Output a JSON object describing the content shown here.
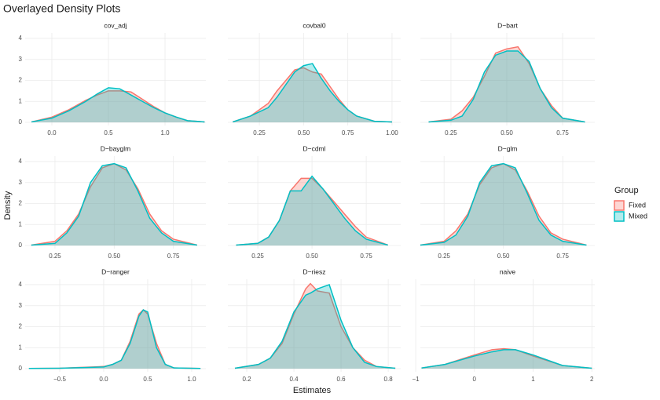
{
  "title": "Overlayed Density Plots",
  "x_label": "Estimates",
  "y_label": "Density",
  "legend_title": "Group",
  "chart_data": [
    {
      "type": "area",
      "title": "cov_adj",
      "x": [
        -0.18,
        0,
        0.15,
        0.3,
        0.4,
        0.5,
        0.6,
        0.7,
        0.8,
        0.9,
        1.0,
        1.1,
        1.2,
        1.35
      ],
      "series": [
        {
          "name": "Fixed",
          "color": "#F8766D",
          "values": [
            0.02,
            0.25,
            0.6,
            1.05,
            1.3,
            1.5,
            1.5,
            1.45,
            1.1,
            0.75,
            0.45,
            0.25,
            0.08,
            0.02
          ]
        },
        {
          "name": "Mixed",
          "color": "#00BFC4",
          "values": [
            0.02,
            0.2,
            0.55,
            1.0,
            1.35,
            1.65,
            1.6,
            1.3,
            1.0,
            0.7,
            0.45,
            0.25,
            0.08,
            0.02
          ]
        }
      ],
      "xlim": [
        -0.236,
        1.361
      ],
      "ylim": [
        -0.15,
        4.26
      ],
      "xticks": [
        {
          "value": 0,
          "label": "0.0"
        },
        0.5,
        {
          "value": 1,
          "label": "1.0"
        }
      ],
      "yticks": [
        0,
        1,
        2,
        3,
        4
      ],
      "grid": true
    },
    {
      "type": "area",
      "title": "covbal0",
      "x": [
        0.1,
        0.2,
        0.3,
        0.35,
        0.4,
        0.45,
        0.5,
        0.55,
        0.6,
        0.65,
        0.7,
        0.75,
        0.8,
        0.9,
        1.0
      ],
      "series": [
        {
          "name": "Fixed",
          "color": "#F8766D",
          "values": [
            0.02,
            0.3,
            0.9,
            1.5,
            2.0,
            2.5,
            2.6,
            2.4,
            2.3,
            1.7,
            1.1,
            0.6,
            0.3,
            0.05,
            0.02
          ]
        },
        {
          "name": "Mixed",
          "color": "#00BFC4",
          "values": [
            0.02,
            0.3,
            0.7,
            1.2,
            1.8,
            2.4,
            2.7,
            2.8,
            2.1,
            1.5,
            1.0,
            0.6,
            0.3,
            0.05,
            0.02
          ]
        }
      ],
      "xlim": [
        0.072,
        1.049
      ],
      "ylim": [
        -0.15,
        4.26
      ],
      "xticks": [
        0.25,
        {
          "value": 0.5,
          "label": "0.50"
        },
        0.75,
        {
          "value": 1,
          "label": "1.00"
        }
      ],
      "yticks": [
        0,
        1,
        2,
        3,
        4
      ],
      "grid": true
    },
    {
      "type": "area",
      "title": "D−bart",
      "x": [
        0.15,
        0.25,
        0.3,
        0.35,
        0.4,
        0.45,
        0.5,
        0.55,
        0.6,
        0.65,
        0.7,
        0.75,
        0.85
      ],
      "series": [
        {
          "name": "Fixed",
          "color": "#F8766D",
          "values": [
            0.02,
            0.15,
            0.55,
            1.2,
            2.2,
            3.3,
            3.5,
            3.6,
            2.8,
            1.6,
            0.8,
            0.2,
            0.02
          ]
        },
        {
          "name": "Mixed",
          "color": "#00BFC4",
          "values": [
            0.02,
            0.1,
            0.3,
            1.1,
            2.4,
            3.2,
            3.4,
            3.4,
            2.9,
            1.6,
            0.7,
            0.2,
            0.02
          ]
        }
      ],
      "xlim": [
        0.113,
        0.894
      ],
      "ylim": [
        -0.15,
        4.26
      ],
      "xticks": [
        0.25,
        {
          "value": 0.5,
          "label": "0.50"
        },
        0.75
      ],
      "yticks": [
        0,
        1,
        2,
        3,
        4
      ],
      "grid": true
    },
    {
      "type": "area",
      "title": "D−bayglm",
      "x": [
        0.15,
        0.25,
        0.3,
        0.35,
        0.4,
        0.45,
        0.5,
        0.55,
        0.6,
        0.65,
        0.7,
        0.75,
        0.85
      ],
      "series": [
        {
          "name": "Fixed",
          "color": "#F8766D",
          "values": [
            0.02,
            0.2,
            0.7,
            1.5,
            2.8,
            3.7,
            3.9,
            3.6,
            2.7,
            1.5,
            0.7,
            0.3,
            0.02
          ]
        },
        {
          "name": "Mixed",
          "color": "#00BFC4",
          "values": [
            0.02,
            0.1,
            0.6,
            1.4,
            3.0,
            3.8,
            3.9,
            3.7,
            2.6,
            1.3,
            0.6,
            0.2,
            0.02
          ]
        }
      ],
      "xlim": [
        0.124,
        0.887
      ],
      "ylim": [
        -0.15,
        4.26
      ],
      "xticks": [
        0.25,
        {
          "value": 0.5,
          "label": "0.50"
        },
        0.75
      ],
      "yticks": [
        0,
        1,
        2,
        3,
        4
      ],
      "grid": true
    },
    {
      "type": "area",
      "title": "D−cdml",
      "x": [
        0.15,
        0.25,
        0.3,
        0.35,
        0.4,
        0.45,
        0.5,
        0.55,
        0.6,
        0.65,
        0.7,
        0.75,
        0.85
      ],
      "series": [
        {
          "name": "Fixed",
          "color": "#F8766D",
          "values": [
            0.02,
            0.1,
            0.4,
            1.2,
            2.6,
            3.2,
            3.2,
            2.7,
            2.1,
            1.5,
            0.9,
            0.4,
            0.02
          ]
        },
        {
          "name": "Mixed",
          "color": "#00BFC4",
          "values": [
            0.02,
            0.1,
            0.4,
            1.2,
            2.6,
            2.6,
            3.3,
            2.7,
            2.0,
            1.3,
            0.7,
            0.3,
            0.02
          ]
        }
      ],
      "xlim": [
        0.112,
        0.909
      ],
      "ylim": [
        -0.15,
        4.26
      ],
      "xticks": [
        0.25,
        {
          "value": 0.5,
          "label": "0.50"
        },
        0.75
      ],
      "yticks": [
        0,
        1,
        2,
        3,
        4
      ],
      "grid": true
    },
    {
      "type": "area",
      "title": "D−glm",
      "x": [
        0.15,
        0.25,
        0.3,
        0.35,
        0.4,
        0.45,
        0.5,
        0.55,
        0.6,
        0.65,
        0.7,
        0.75,
        0.85
      ],
      "series": [
        {
          "name": "Fixed",
          "color": "#F8766D",
          "values": [
            0.02,
            0.2,
            0.7,
            1.5,
            2.9,
            3.7,
            3.9,
            3.6,
            2.6,
            1.4,
            0.6,
            0.3,
            0.02
          ]
        },
        {
          "name": "Mixed",
          "color": "#00BFC4",
          "values": [
            0.02,
            0.15,
            0.5,
            1.4,
            3.0,
            3.8,
            3.9,
            3.7,
            2.5,
            1.2,
            0.5,
            0.2,
            0.02
          ]
        }
      ],
      "xlim": [
        0.15,
        0.885
      ],
      "ylim": [
        -0.15,
        4.26
      ],
      "xticks": [
        0.25,
        {
          "value": 0.5,
          "label": "0.50"
        },
        0.75
      ],
      "yticks": [
        0,
        1,
        2,
        3,
        4
      ],
      "grid": true
    },
    {
      "type": "area",
      "title": "D−ranger",
      "x": [
        -0.85,
        -0.5,
        -0.3,
        0,
        0.1,
        0.2,
        0.3,
        0.4,
        0.45,
        0.5,
        0.6,
        0.7,
        0.8,
        1.1
      ],
      "series": [
        {
          "name": "Fixed",
          "color": "#F8766D",
          "values": [
            0.01,
            0.02,
            0.05,
            0.1,
            0.2,
            0.4,
            1.3,
            2.6,
            2.8,
            2.6,
            1.2,
            0.2,
            0.03,
            0.01
          ]
        },
        {
          "name": "Mixed",
          "color": "#00BFC4",
          "values": [
            0.01,
            0.02,
            0.04,
            0.08,
            0.2,
            0.4,
            1.2,
            2.5,
            2.8,
            2.7,
            1.0,
            0.2,
            0.03,
            0.01
          ]
        }
      ],
      "xlim": [
        -0.893,
        1.161
      ],
      "ylim": [
        -0.15,
        4.26
      ],
      "xticks": [
        {
          "value": -0.5,
          "label": "−0.5"
        },
        {
          "value": 0,
          "label": "0.0"
        },
        0.5,
        {
          "value": 1,
          "label": "1.0"
        }
      ],
      "yticks": [
        0,
        1,
        2,
        3,
        4
      ],
      "grid": true
    },
    {
      "type": "area",
      "title": "D−riesz",
      "x": [
        0.15,
        0.25,
        0.3,
        0.35,
        0.4,
        0.45,
        0.47,
        0.5,
        0.55,
        0.6,
        0.65,
        0.7,
        0.75,
        0.83
      ],
      "series": [
        {
          "name": "Fixed",
          "color": "#F8766D",
          "values": [
            0.02,
            0.2,
            0.5,
            1.2,
            2.6,
            3.8,
            4.05,
            3.7,
            3.6,
            2.0,
            1.0,
            0.4,
            0.1,
            0.02
          ]
        },
        {
          "name": "Mixed",
          "color": "#00BFC4",
          "values": [
            0.02,
            0.2,
            0.5,
            1.3,
            2.7,
            3.5,
            3.6,
            3.8,
            4.0,
            2.3,
            1.0,
            0.3,
            0.1,
            0.02
          ]
        }
      ],
      "xlim": [
        0.12,
        0.853
      ],
      "ylim": [
        -0.15,
        4.26
      ],
      "xticks": [
        0.2,
        0.4,
        0.6,
        0.8
      ],
      "yticks": [
        0,
        1,
        2,
        3,
        4
      ],
      "grid": true
    },
    {
      "type": "area",
      "title": "naive",
      "x": [
        -0.9,
        -0.5,
        0,
        0.3,
        0.5,
        0.7,
        1.0,
        1.5,
        2.0
      ],
      "series": [
        {
          "name": "Fixed",
          "color": "#F8766D",
          "values": [
            0.03,
            0.2,
            0.65,
            0.9,
            0.95,
            0.9,
            0.6,
            0.15,
            0.02
          ]
        },
        {
          "name": "Mixed",
          "color": "#00BFC4",
          "values": [
            0.03,
            0.2,
            0.6,
            0.8,
            0.9,
            0.9,
            0.65,
            0.15,
            0.02
          ]
        }
      ],
      "xlim": [
        -0.92,
        2.05
      ],
      "ylim": [
        -0.15,
        4.26
      ],
      "xticks": [
        {
          "value": -1,
          "label": "−1"
        },
        0,
        1,
        2
      ],
      "yticks": [
        0,
        1,
        2,
        3,
        4
      ],
      "grid": true
    }
  ]
}
